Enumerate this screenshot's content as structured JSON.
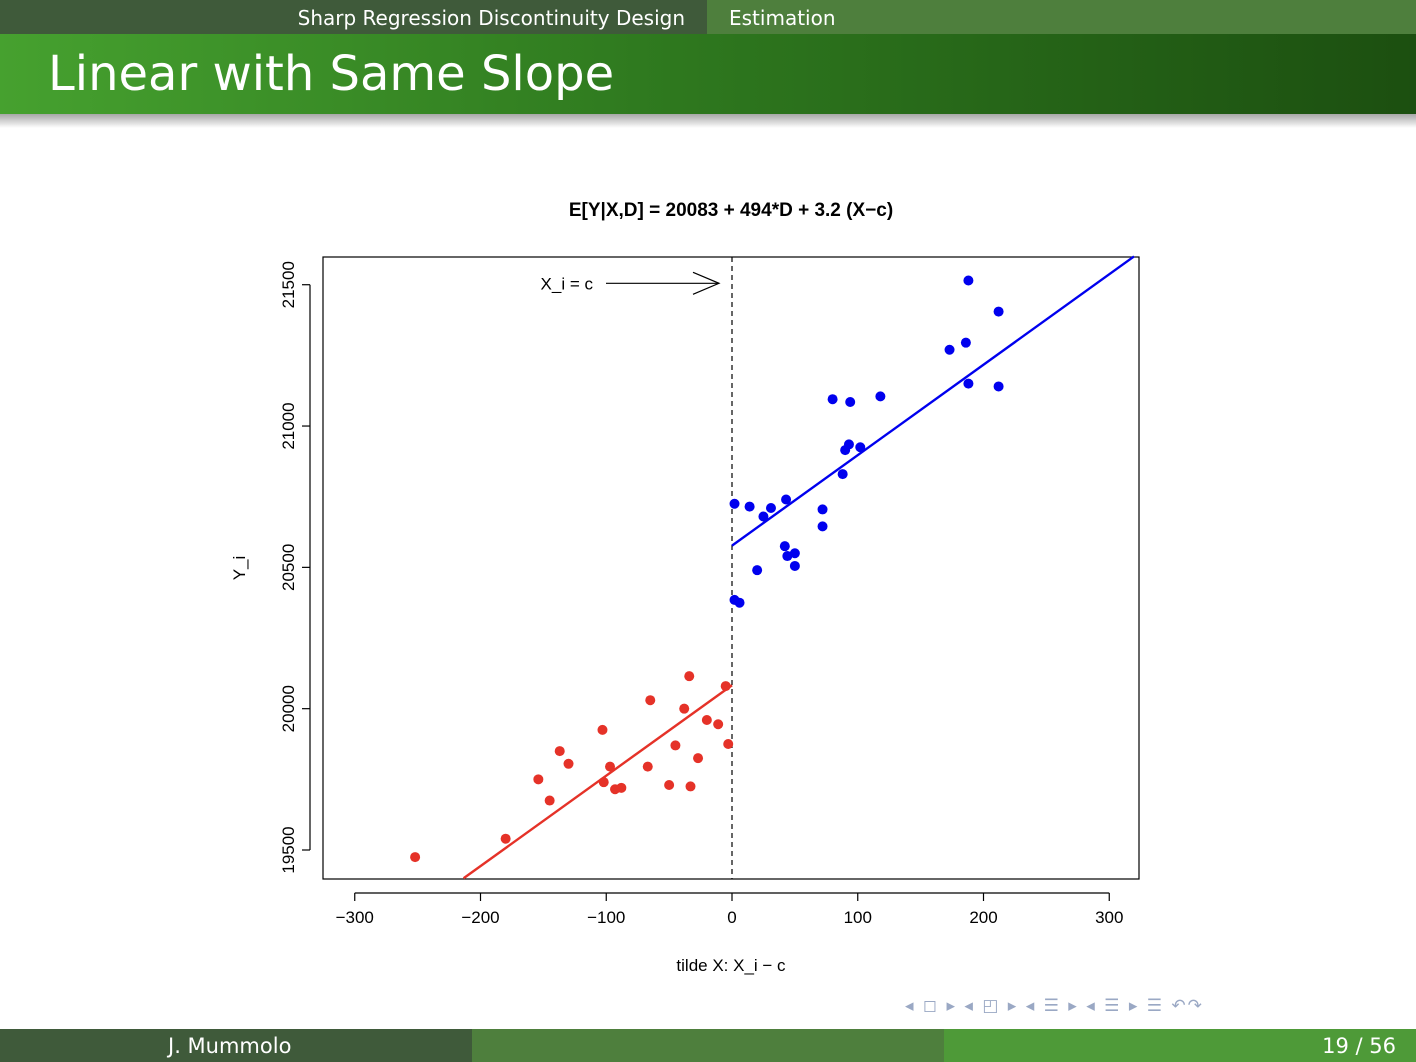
{
  "header": {
    "section": "Sharp Regression Discontinuity Design",
    "subsection": "Estimation",
    "frame_title": "Linear with Same Slope"
  },
  "footer": {
    "author": "J. Mummolo",
    "page": "19 / 56"
  },
  "nav": {
    "symbols": "◂ ◻ ▸ ◂ ◰ ▸ ◂ ☰ ▸ ◂ ☰ ▸   ☰   ↶↷"
  },
  "colors": {
    "control": "#e53228",
    "treated": "#0000ee",
    "axis": "#000000"
  },
  "chart_data": {
    "type": "scatter",
    "title": "E[Y|X,D] = 20083 + 494*D + 3.2 (X−c)",
    "xlabel": "tilde X: X_i − c",
    "ylabel": "Y_i",
    "xlim": [
      -300,
      300
    ],
    "ylim": [
      19400,
      21600
    ],
    "xticks": [
      -300,
      -200,
      -100,
      0,
      100,
      200,
      300
    ],
    "xtick_labels": [
      "−300",
      "−200",
      "−100",
      "0",
      "100",
      "200",
      "300"
    ],
    "yticks": [
      19500,
      20000,
      20500,
      21000,
      21500
    ],
    "ytick_labels": [
      "19500",
      "20000",
      "20500",
      "21000",
      "21500"
    ],
    "grid": false,
    "annotation": {
      "text": "X_i = c",
      "points_to_x": 0,
      "y": 21505
    },
    "cutoff_x": 0,
    "fit": {
      "intercept": 20083,
      "jump": 494,
      "slope": 3.2
    },
    "series": [
      {
        "color": "#e53228",
        "points": [
          [
            -252,
            19475
          ],
          [
            -180,
            19540
          ],
          [
            -154,
            19750
          ],
          [
            -145,
            19675
          ],
          [
            -137,
            19850
          ],
          [
            -130,
            19805
          ],
          [
            -103,
            19925
          ],
          [
            -102,
            19740
          ],
          [
            -97,
            19795
          ],
          [
            -93,
            19715
          ],
          [
            -88,
            19720
          ],
          [
            -67,
            19795
          ],
          [
            -65,
            20030
          ],
          [
            -50,
            19730
          ],
          [
            -45,
            19870
          ],
          [
            -38,
            20000
          ],
          [
            -34,
            20115
          ],
          [
            -33,
            19725
          ],
          [
            -27,
            19825
          ],
          [
            -20,
            19960
          ],
          [
            -11,
            19945
          ],
          [
            -5,
            20080
          ],
          [
            -3,
            19875
          ]
        ]
      },
      {
        "color": "#0000ee",
        "points": [
          [
            2,
            20725
          ],
          [
            2,
            20385
          ],
          [
            6,
            20375
          ],
          [
            14,
            20715
          ],
          [
            20,
            20490
          ],
          [
            25,
            20680
          ],
          [
            31,
            20710
          ],
          [
            42,
            20575
          ],
          [
            43,
            20740
          ],
          [
            44,
            20540
          ],
          [
            50,
            20550
          ],
          [
            50,
            20505
          ],
          [
            72,
            20705
          ],
          [
            72,
            20645
          ],
          [
            80,
            21095
          ],
          [
            88,
            20830
          ],
          [
            90,
            20915
          ],
          [
            93,
            20935
          ],
          [
            94,
            21085
          ],
          [
            102,
            20925
          ],
          [
            118,
            21105
          ],
          [
            173,
            21270
          ],
          [
            186,
            21295
          ],
          [
            188,
            21515
          ],
          [
            188,
            21150
          ],
          [
            212,
            21405
          ],
          [
            212,
            21140
          ]
        ]
      }
    ]
  }
}
